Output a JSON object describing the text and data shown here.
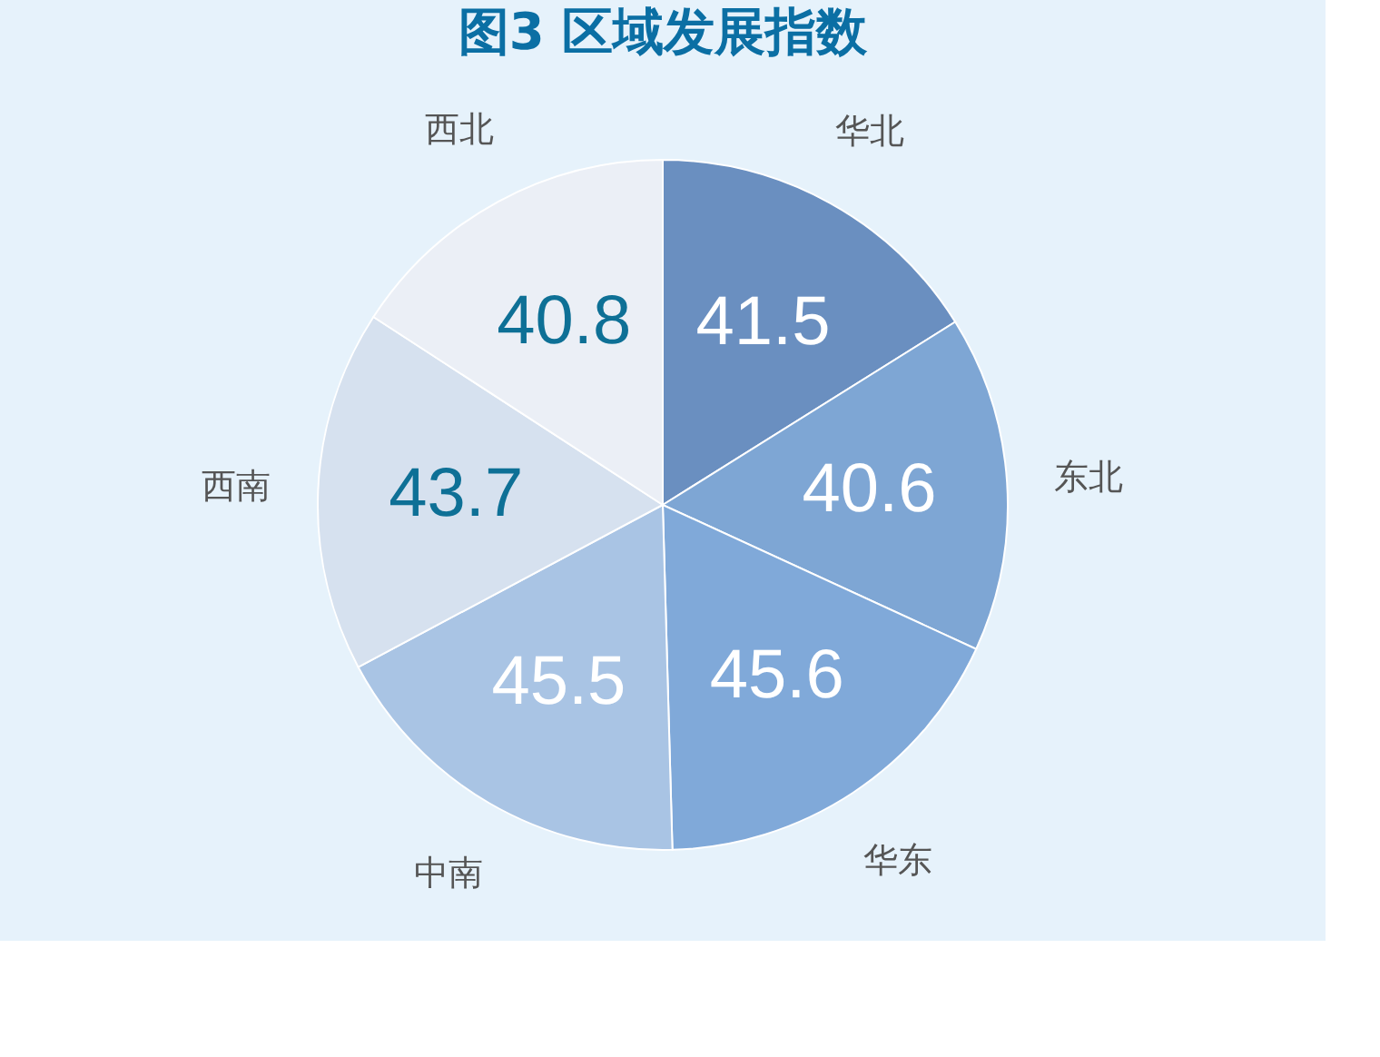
{
  "chart_data": {
    "type": "pie",
    "title": "图3 区域发展指数",
    "categories": [
      "华北",
      "东北",
      "华东",
      "中南",
      "西南",
      "西北"
    ],
    "values": [
      41.5,
      40.6,
      45.6,
      45.5,
      43.7,
      40.8
    ],
    "colors": [
      "#6a8fc0",
      "#7ea6d4",
      "#80a9d9",
      "#a9c4e4",
      "#d6e1ef",
      "#ebeff6"
    ],
    "data_labels": true,
    "legend": false
  }
}
